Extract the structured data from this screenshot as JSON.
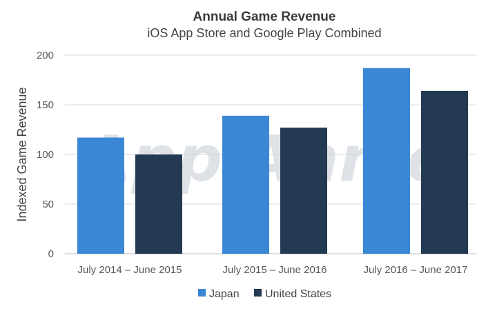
{
  "chart_data": {
    "type": "bar",
    "title": "Annual Game Revenue",
    "subtitle": "iOS App Store and Google Play Combined",
    "ylabel": "Indexed Game Revenue",
    "xlabel": "",
    "ylim": [
      0,
      200
    ],
    "yticks": [
      0,
      50,
      100,
      150,
      200
    ],
    "categories": [
      "July 2014 – June 2015",
      "July 2015 – June 2016",
      "July 2016 – June 2017"
    ],
    "series": [
      {
        "name": "Japan",
        "color": "#3a87d6",
        "values": [
          117,
          139,
          187
        ]
      },
      {
        "name": "United States",
        "color": "#243a52",
        "values": [
          100,
          127,
          164
        ]
      }
    ],
    "grid": true,
    "legend": "bottom-center",
    "watermark": "App Annie"
  }
}
